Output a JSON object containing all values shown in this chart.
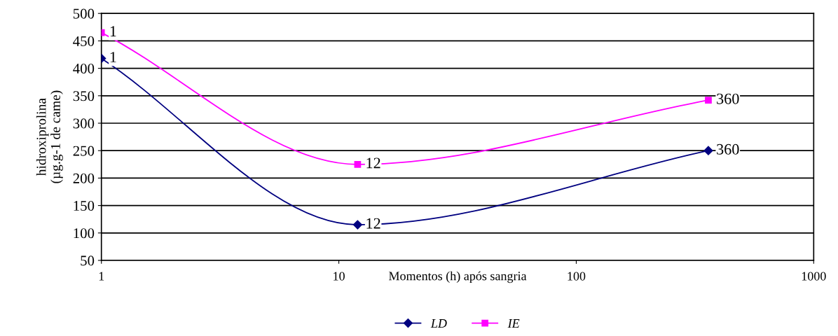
{
  "chart_data": {
    "type": "line",
    "xlabel": "Momentos (h) após sangria",
    "ylabel": "hidroxiprolina\n(µg.g-1 de came)",
    "x": [
      1,
      12,
      360
    ],
    "series": [
      {
        "name": "LD",
        "color": "#000080",
        "marker": "diamond",
        "values": [
          418,
          115,
          250
        ]
      },
      {
        "name": "IE",
        "color": "#ff00ff",
        "marker": "square",
        "values": [
          465,
          225,
          342
        ]
      }
    ],
    "annotations": [
      {
        "text": "1",
        "x": 1,
        "y": 418
      },
      {
        "text": "12",
        "x": 12,
        "y": 115
      },
      {
        "text": "360",
        "x": 360,
        "y": 250
      },
      {
        "text": "1",
        "x": 1,
        "y": 465
      },
      {
        "text": "12",
        "x": 12,
        "y": 225
      },
      {
        "text": "360",
        "x": 360,
        "y": 342
      }
    ],
    "log": "x",
    "xlim": [
      1,
      1000
    ],
    "xticks": [
      1,
      10,
      100,
      1000
    ],
    "ylim": [
      50,
      500
    ],
    "yticks": [
      50,
      100,
      150,
      200,
      250,
      300,
      350,
      400,
      450,
      500
    ],
    "grid": "y",
    "legend": "bottom"
  }
}
